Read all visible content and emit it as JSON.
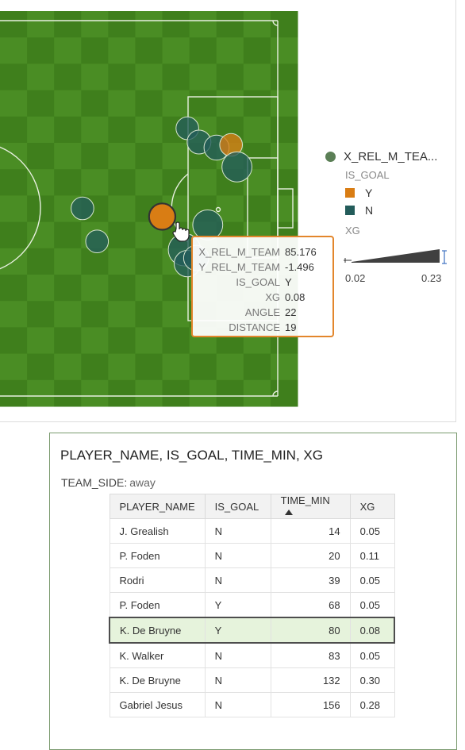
{
  "chart_data": {
    "type": "scatter",
    "series_fields": {
      "x": "X_REL_M_TEAM",
      "y": "Y_REL_M_TEAM",
      "color": "IS_GOAL",
      "size": "XG"
    },
    "x_range": [
      53,
      105
    ],
    "y_range": [
      -34,
      34
    ],
    "points": [
      {
        "x": 89.5,
        "y": 14.5,
        "is_goal": "N",
        "xg": 0.05
      },
      {
        "x": 91.5,
        "y": 12.0,
        "is_goal": "N",
        "xg": 0.06
      },
      {
        "x": 94.5,
        "y": 11.0,
        "is_goal": "N",
        "xg": 0.07
      },
      {
        "x": 97.0,
        "y": 11.5,
        "is_goal": "Y",
        "xg": 0.05
      },
      {
        "x": 98.0,
        "y": 7.5,
        "is_goal": "N",
        "xg": 0.11
      },
      {
        "x": 71.5,
        "y": 0.0,
        "is_goal": "N",
        "xg": 0.05
      },
      {
        "x": 85.176,
        "y": -1.496,
        "is_goal": "Y",
        "xg": 0.08
      },
      {
        "x": 74.0,
        "y": -6.0,
        "is_goal": "N",
        "xg": 0.05
      },
      {
        "x": 93.0,
        "y": -3.0,
        "is_goal": "N",
        "xg": 0.11
      },
      {
        "x": 89.0,
        "y": -7.5,
        "is_goal": "N",
        "xg": 0.13
      },
      {
        "x": 89.5,
        "y": -10.0,
        "is_goal": "N",
        "xg": 0.08
      },
      {
        "x": 91.0,
        "y": -9.0,
        "is_goal": "N",
        "xg": 0.07
      }
    ],
    "legend": {
      "title": "X_REL_M_TEA...",
      "color_field": "IS_GOAL",
      "color_items": [
        {
          "label": "Y",
          "color": "#d97d14"
        },
        {
          "label": "N",
          "color": "#235c5a"
        }
      ],
      "size_field": "XG",
      "size_min": "0.02",
      "size_max": "0.23"
    },
    "tooltip": {
      "rows": [
        {
          "key": "X_REL_M_TEAM",
          "value": "85.176"
        },
        {
          "key": "Y_REL_M_TEAM",
          "value": "-1.496"
        },
        {
          "key": "IS_GOAL",
          "value": "Y"
        },
        {
          "key": "XG",
          "value": "0.08"
        },
        {
          "key": "ANGLE",
          "value": "22"
        },
        {
          "key": "DISTANCE",
          "value": "19"
        }
      ]
    }
  },
  "colors": {
    "grass_dark": "#3f7f1c",
    "grass_light": "#4a8d24",
    "goal_yes": "#d97d14",
    "goal_no": "#235c5a",
    "legend_dot": "#5b7f56"
  },
  "table_panel": {
    "title": "PLAYER_NAME, IS_GOAL, TIME_MIN, XG",
    "filter_label": "TEAM_SIDE:",
    "filter_value": "away",
    "columns": [
      "PLAYER_NAME",
      "IS_GOAL",
      "TIME_MIN",
      "XG"
    ],
    "rows": [
      {
        "player": "J. Grealish",
        "goal": "N",
        "time": "14",
        "xg": "0.05"
      },
      {
        "player": "P. Foden",
        "goal": "N",
        "time": "20",
        "xg": "0.11"
      },
      {
        "player": "Rodri",
        "goal": "N",
        "time": "39",
        "xg": "0.05"
      },
      {
        "player": "P. Foden",
        "goal": "Y",
        "time": "68",
        "xg": "0.05"
      },
      {
        "player": "K. De Bruyne",
        "goal": "Y",
        "time": "80",
        "xg": "0.08"
      },
      {
        "player": "K. Walker",
        "goal": "N",
        "time": "83",
        "xg": "0.05"
      },
      {
        "player": "K. De Bruyne",
        "goal": "N",
        "time": "132",
        "xg": "0.30"
      },
      {
        "player": "Gabriel Jesus",
        "goal": "N",
        "time": "156",
        "xg": "0.28"
      }
    ],
    "selected_row": 4
  }
}
